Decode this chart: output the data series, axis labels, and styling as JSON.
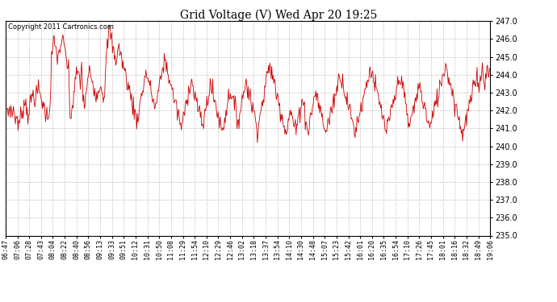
{
  "title": "Grid Voltage (V) Wed Apr 20 19:25",
  "copyright": "Copyright 2011 Cartronics.com",
  "ylim": [
    235.0,
    247.0
  ],
  "yticks": [
    235.0,
    236.0,
    237.0,
    238.0,
    239.0,
    240.0,
    241.0,
    242.0,
    243.0,
    244.0,
    245.0,
    246.0,
    247.0
  ],
  "line_color": "#cc0000",
  "background_color": "#ffffff",
  "plot_bg_color": "#ffffff",
  "grid_color": "#aaaaaa",
  "xtick_labels": [
    "06:47",
    "07:06",
    "07:28",
    "07:43",
    "08:04",
    "08:22",
    "08:40",
    "08:56",
    "09:13",
    "09:33",
    "09:51",
    "10:12",
    "10:31",
    "10:50",
    "11:08",
    "11:29",
    "11:54",
    "12:10",
    "12:29",
    "12:46",
    "13:02",
    "13:18",
    "13:37",
    "13:54",
    "14:10",
    "14:30",
    "14:48",
    "15:07",
    "15:23",
    "15:42",
    "16:01",
    "16:20",
    "16:35",
    "16:54",
    "17:10",
    "17:26",
    "17:45",
    "18:01",
    "18:16",
    "18:32",
    "18:49",
    "19:06"
  ],
  "voltage_profile": [
    242.3,
    242.1,
    241.9,
    242.2,
    242.0,
    241.8,
    242.1,
    241.8,
    241.5,
    241.6,
    241.0,
    241.5,
    241.8,
    242.1,
    242.3,
    242.5,
    242.2,
    241.8,
    242.1,
    242.4,
    242.7,
    243.0,
    242.8,
    242.6,
    243.0,
    243.2,
    243.0,
    242.7,
    242.5,
    242.2,
    242.0,
    241.8,
    241.6,
    242.0,
    242.5,
    245.0,
    245.5,
    245.8,
    245.5,
    245.2,
    244.9,
    245.3,
    245.7,
    246.0,
    245.7,
    245.4,
    245.1,
    244.5,
    244.2,
    241.6,
    241.8,
    242.2,
    243.0,
    243.5,
    244.0,
    244.3,
    243.8,
    243.5,
    244.8,
    242.5,
    242.2,
    242.8,
    243.3,
    243.8,
    244.3,
    244.0,
    243.7,
    243.4,
    243.2,
    243.0,
    242.8,
    243.2,
    243.6,
    243.3,
    243.0,
    242.7,
    244.0,
    245.2,
    246.0,
    246.5,
    246.2,
    245.8,
    245.4,
    245.0,
    244.8,
    245.2,
    245.6,
    245.3,
    245.0,
    244.7,
    244.4,
    244.1,
    243.8,
    243.5,
    243.2,
    242.9,
    242.6,
    242.3,
    242.0,
    241.7,
    241.4,
    241.8,
    242.2,
    242.6,
    243.0,
    243.4,
    243.8,
    244.2,
    243.9,
    243.6,
    243.3,
    243.0,
    242.7,
    242.4,
    242.1,
    242.5,
    242.9,
    243.3,
    243.7,
    244.1,
    244.5,
    244.9,
    244.6,
    244.3,
    244.0,
    243.7,
    243.4,
    243.1,
    242.8,
    242.5,
    242.2,
    241.9,
    241.6,
    241.3,
    241.0,
    241.4,
    241.8,
    242.2,
    242.6,
    243.0,
    243.4,
    243.8,
    243.5,
    243.2,
    242.9,
    242.6,
    242.3,
    242.0,
    241.7,
    241.4,
    241.1,
    241.5,
    241.9,
    242.3,
    242.7,
    243.1,
    243.5,
    243.2,
    242.9,
    242.6,
    242.3,
    242.0,
    241.7,
    241.4,
    241.1,
    240.9,
    241.2,
    241.6,
    242.0,
    242.4,
    242.8,
    243.2,
    242.9,
    242.6,
    242.3,
    242.0,
    241.7,
    241.4,
    241.7,
    242.1,
    242.5,
    242.9,
    243.3,
    243.7,
    243.4,
    243.1,
    242.8,
    242.5,
    242.2,
    241.9,
    241.6,
    241.3,
    241.0,
    241.4,
    241.8,
    242.2,
    242.6,
    243.0,
    243.4,
    243.8,
    244.2,
    244.6,
    244.3,
    244.0,
    243.7,
    243.4,
    243.1,
    242.8,
    242.5,
    242.2,
    241.9,
    241.6,
    241.3,
    241.0,
    240.8,
    241.2,
    241.6,
    242.0,
    241.7,
    241.4,
    241.1,
    240.8,
    241.2,
    241.6,
    242.0,
    242.4,
    242.8,
    242.3,
    241.8,
    241.3,
    240.8,
    241.1,
    241.5,
    241.9,
    242.3,
    242.7,
    243.1,
    242.8,
    242.5,
    242.2,
    241.9,
    241.6,
    241.3,
    241.0,
    240.8,
    241.1,
    241.4,
    241.7,
    242.0,
    242.3,
    242.6,
    242.9,
    243.2,
    243.5,
    243.8,
    244.1,
    243.8,
    243.5,
    243.2,
    242.9,
    242.6,
    242.3,
    242.0,
    241.7,
    241.4,
    241.1,
    240.8,
    241.1,
    241.4,
    241.7,
    242.0,
    242.3,
    242.6,
    242.9,
    243.2,
    243.5,
    243.8,
    244.1,
    244.4,
    244.1,
    243.8,
    243.5,
    243.2,
    242.9,
    242.6,
    242.3,
    242.0,
    241.7,
    241.4,
    241.1,
    240.8,
    241.1,
    241.4,
    241.7,
    242.0,
    242.3,
    242.6,
    242.9,
    243.2,
    243.5,
    243.8,
    244.1,
    243.6,
    243.1,
    242.6,
    242.1,
    241.6,
    241.1,
    241.3,
    241.6,
    241.9,
    242.2,
    242.5,
    242.8,
    243.1,
    243.4,
    243.1,
    242.8,
    242.5,
    242.2,
    241.9,
    241.6,
    241.3,
    241.0,
    241.3,
    241.6,
    241.9,
    242.2,
    242.5,
    242.8,
    243.1,
    243.4,
    243.7,
    244.0,
    244.3,
    244.6,
    244.3,
    244.0,
    243.7,
    243.4,
    243.1,
    242.8,
    242.5,
    242.2,
    241.9,
    241.6,
    241.3,
    241.0,
    240.7,
    241.0,
    241.3,
    241.6,
    241.9,
    242.2,
    242.5,
    242.8,
    243.1,
    243.4,
    243.7,
    244.0,
    243.7,
    243.4,
    244.0,
    244.3,
    244.0,
    243.7,
    244.0,
    244.3,
    244.0,
    244.3
  ],
  "noise_std": 0.28,
  "seed": 7
}
